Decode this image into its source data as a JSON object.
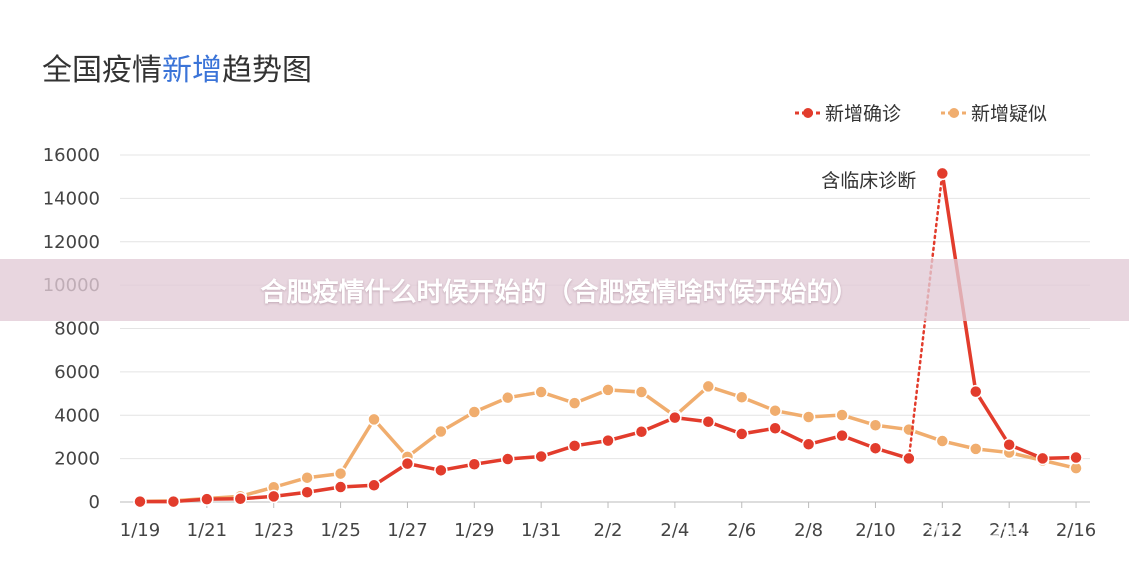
{
  "chart_data": {
    "type": "line",
    "title_parts": [
      {
        "text": "全国疫情",
        "accent": false
      },
      {
        "text": "新增",
        "accent": true
      },
      {
        "text": "趋势图",
        "accent": false
      }
    ],
    "x": [
      "1/19",
      "1/20",
      "1/21",
      "1/22",
      "1/23",
      "1/24",
      "1/25",
      "1/26",
      "1/27",
      "1/28",
      "1/29",
      "1/30",
      "1/31",
      "2/1",
      "2/2",
      "2/3",
      "2/4",
      "2/5",
      "2/6",
      "2/7",
      "2/8",
      "2/9",
      "2/10",
      "2/11",
      "2/12",
      "2/13",
      "2/14",
      "2/15",
      "2/16"
    ],
    "x_tick_labels": [
      "1/19",
      "1/21",
      "1/23",
      "1/25",
      "1/27",
      "1/29",
      "1/31",
      "2/2",
      "2/4",
      "2/6",
      "2/8",
      "2/10",
      "2/12",
      "2/14",
      "2/16"
    ],
    "y_ticks": [
      0,
      2000,
      4000,
      6000,
      8000,
      10000,
      12000,
      14000,
      16000
    ],
    "ylim": [
      0,
      16000
    ],
    "grid": true,
    "legend_position": "top-right",
    "series": [
      {
        "name": "新增确诊",
        "color": "#e23c2c",
        "values": [
          20,
          20,
          130,
          150,
          260,
          450,
          690,
          770,
          1770,
          1460,
          1740,
          1980,
          2100,
          2590,
          2830,
          3240,
          3890,
          3700,
          3140,
          3400,
          2660,
          3060,
          2480,
          2010,
          15150,
          5090,
          2640,
          2010,
          2050
        ]
      },
      {
        "name": "新增疑似",
        "color": "#f0ad6e",
        "values": [
          30,
          50,
          160,
          260,
          680,
          1120,
          1310,
          3810,
          2080,
          3250,
          4150,
          4810,
          5070,
          4560,
          5170,
          5070,
          3970,
          5330,
          4830,
          4210,
          3920,
          4010,
          3540,
          3340,
          2810,
          2450,
          2280,
          1920,
          1560
        ]
      }
    ],
    "annotation": {
      "text": "含临床诊断",
      "series": "新增确诊",
      "x": "2/12"
    },
    "dotted_segment": {
      "series": "新增确诊",
      "from": "2/11",
      "to": "2/12"
    }
  },
  "banner_text": "合肥疫情什么时候开始的（合肥疫情啥时候开始的）",
  "watermark": "知乎 @Eitian"
}
